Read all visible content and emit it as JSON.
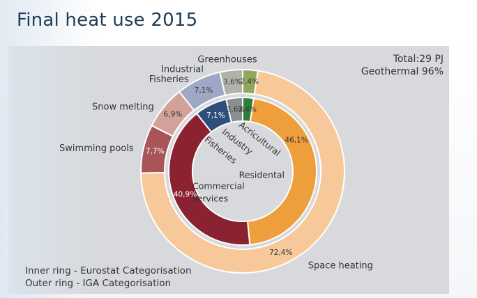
{
  "title": "Final heat use 2015",
  "totals": {
    "total": "Total:29 PJ",
    "geothermal": "Geothermal 96%"
  },
  "notes": {
    "inner": "Inner ring - Eurostat Categorisation",
    "outer": "Outer ring - IGA Categorisation"
  },
  "chart_data": {
    "type": "donut",
    "title": "Final heat use 2015",
    "rings": [
      {
        "name": "Outer ring - IGA Categorisation",
        "slices": [
          {
            "label": "Greenhouses",
            "pct_text": "2,4%",
            "value": 2.4,
            "color": "#8fa85a"
          },
          {
            "label": "Space heating",
            "pct_text": "72,4%",
            "value": 72.4,
            "color": "#f7c99a"
          },
          {
            "label": "Swimming pools",
            "pct_text": "7,7%",
            "value": 7.7,
            "color": "#a85459"
          },
          {
            "label": "Snow melting",
            "pct_text": "6,9%",
            "value": 6.9,
            "color": "#d2a29a"
          },
          {
            "label": "Fisheries",
            "pct_text": "7,1%",
            "value": 7.1,
            "color": "#9ea8c4"
          },
          {
            "label": "Industrial",
            "pct_text": "3,6%",
            "value": 3.6,
            "color": "#b2b1aa"
          }
        ]
      },
      {
        "name": "Inner ring - Eurostat Categorisation",
        "slices": [
          {
            "label": "Acricultural",
            "pct_text": "2,4%",
            "value": 2.4,
            "color": "#2f7d3c"
          },
          {
            "label": "Residental",
            "pct_text": "46,1%",
            "value": 46.1,
            "color": "#ef9e3c"
          },
          {
            "label": "Commercial services",
            "pct_text": "40,9%",
            "value": 40.9,
            "color": "#8b2232"
          },
          {
            "label": "Fisheries",
            "pct_text": "7,1%",
            "value": 7.1,
            "color": "#2f4e79"
          },
          {
            "label": "Industry",
            "pct_text": "3,6%",
            "value": 3.6,
            "color": "#8c8f92"
          }
        ]
      }
    ]
  }
}
